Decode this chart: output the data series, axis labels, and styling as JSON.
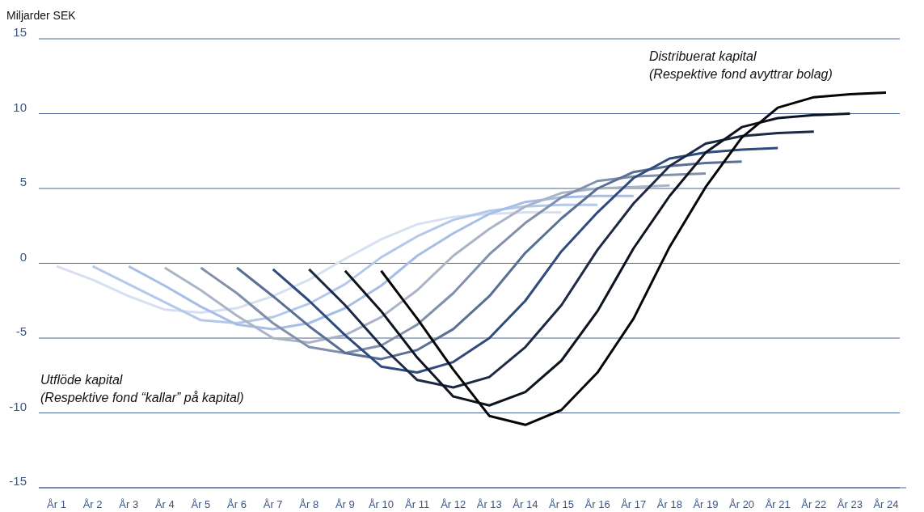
{
  "chart_data": {
    "type": "line",
    "ylabel": "Miljarder SEK",
    "annotations": [
      "Utflöde kapital\n(Respektive fond “kallar” på kapital)",
      "Distribuerat kapital\n(Respektive fond avyttrar bolag)"
    ],
    "categories": [
      "År 1",
      "År 2",
      "År 3",
      "År 4",
      "År 5",
      "År 6",
      "År 7",
      "År 8",
      "År 9",
      "År 10",
      "År 11",
      "År 12",
      "År 13",
      "År 14",
      "År 15",
      "År 16",
      "År 17",
      "År 18",
      "År 19",
      "År 20",
      "År 21",
      "År 22",
      "År 23",
      "År 24"
    ],
    "ylim": [
      -15,
      15
    ],
    "yticks": [
      -15,
      -10,
      -5,
      0,
      5,
      10,
      15
    ],
    "grid": "y",
    "line_style": "solid",
    "marker": "none",
    "series": [
      {
        "color": "#d6e0f2",
        "values": [
          -0.2,
          -1.1,
          -2.2,
          -3.1,
          -3.3,
          -3.0,
          -2.2,
          -1.1,
          0.3,
          1.6,
          2.6,
          3.1,
          3.3,
          3.4,
          3.4,
          null,
          null,
          null,
          null,
          null,
          null,
          null,
          null,
          null
        ]
      },
      {
        "color": "#b4c8ea",
        "values": [
          null,
          -0.2,
          -1.4,
          -2.6,
          -3.8,
          -4.0,
          -3.6,
          -2.7,
          -1.4,
          0.4,
          1.8,
          2.9,
          3.5,
          3.8,
          3.9,
          3.9,
          null,
          null,
          null,
          null,
          null,
          null,
          null,
          null
        ]
      },
      {
        "color": "#a6bee6",
        "values": [
          null,
          null,
          -0.2,
          -1.5,
          -2.9,
          -4.1,
          -4.4,
          -4.0,
          -3.0,
          -1.5,
          0.5,
          2.0,
          3.3,
          4.1,
          4.4,
          4.5,
          4.5,
          null,
          null,
          null,
          null,
          null,
          null,
          null
        ]
      },
      {
        "color": "#aab4c6",
        "values": [
          null,
          null,
          null,
          -0.3,
          -1.8,
          -3.5,
          -5.0,
          -5.3,
          -4.8,
          -3.6,
          -1.8,
          0.5,
          2.3,
          3.8,
          4.7,
          5.0,
          5.1,
          5.2,
          null,
          null,
          null,
          null,
          null,
          null
        ]
      },
      {
        "color": "#8290ab",
        "values": [
          null,
          null,
          null,
          null,
          -0.3,
          -2.0,
          -4.0,
          -5.6,
          -6.0,
          -5.5,
          -4.1,
          -2.0,
          0.6,
          2.7,
          4.4,
          5.5,
          5.8,
          5.9,
          6.0,
          null,
          null,
          null,
          null,
          null
        ]
      },
      {
        "color": "#5b6e94",
        "values": [
          null,
          null,
          null,
          null,
          null,
          -0.3,
          -2.2,
          -4.2,
          -6.0,
          -6.4,
          -5.8,
          -4.4,
          -2.2,
          0.7,
          3.0,
          5.0,
          6.1,
          6.5,
          6.7,
          6.8,
          null,
          null,
          null,
          null
        ]
      },
      {
        "color": "#2f4a7c",
        "values": [
          null,
          null,
          null,
          null,
          null,
          null,
          -0.4,
          -2.5,
          -4.8,
          -6.9,
          -7.3,
          -6.6,
          -5.0,
          -2.5,
          0.8,
          3.4,
          5.7,
          7.0,
          7.4,
          7.6,
          7.7,
          null,
          null,
          null
        ]
      },
      {
        "color": "#1d2a44",
        "values": [
          null,
          null,
          null,
          null,
          null,
          null,
          null,
          -0.4,
          -2.8,
          -5.5,
          -7.8,
          -8.3,
          -7.6,
          -5.6,
          -2.8,
          0.9,
          4.0,
          6.5,
          8.0,
          8.5,
          8.7,
          8.8,
          null,
          null
        ]
      },
      {
        "color": "#0f1520",
        "values": [
          null,
          null,
          null,
          null,
          null,
          null,
          null,
          null,
          -0.5,
          -3.2,
          -6.3,
          -8.9,
          -9.5,
          -8.6,
          -6.5,
          -3.2,
          1.0,
          4.5,
          7.4,
          9.1,
          9.7,
          9.9,
          10.0,
          null
        ]
      },
      {
        "color": "#050505",
        "values": [
          null,
          null,
          null,
          null,
          null,
          null,
          null,
          null,
          null,
          -0.5,
          -3.7,
          -7.1,
          -10.2,
          -10.8,
          -9.8,
          -7.3,
          -3.7,
          1.1,
          5.1,
          8.4,
          10.4,
          11.1,
          11.3,
          11.4
        ]
      }
    ]
  }
}
